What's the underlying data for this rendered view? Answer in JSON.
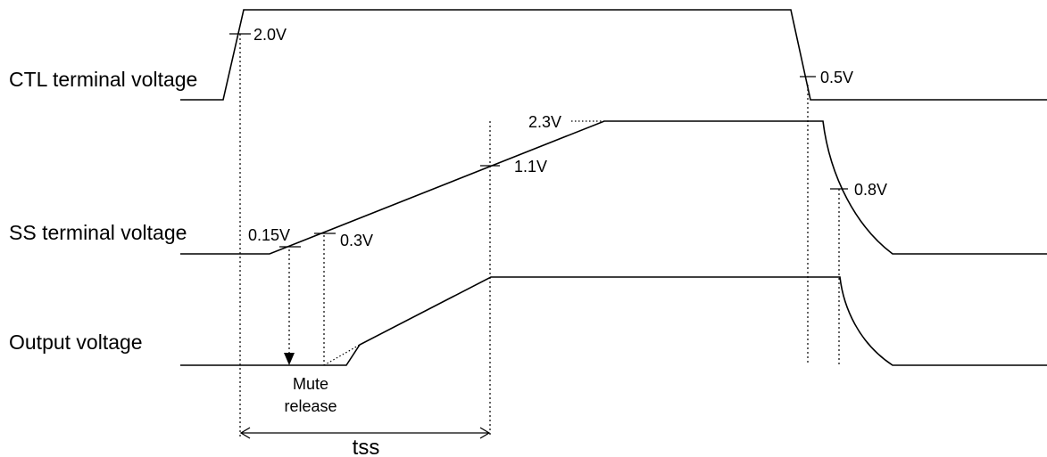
{
  "signals": {
    "ctl": "CTL terminal voltage",
    "ss": "SS terminal voltage",
    "output": "Output voltage"
  },
  "levels": {
    "ctl_rise": "2.0V",
    "ctl_fall": "0.5V",
    "ss_top": "2.3V",
    "ss_mid": "1.1V",
    "ss_fall": "0.8V",
    "ss_015": "0.15V",
    "ss_03": "0.3V"
  },
  "annotations": {
    "mute_line1": "Mute",
    "mute_line2": "release",
    "tss": "tss"
  }
}
